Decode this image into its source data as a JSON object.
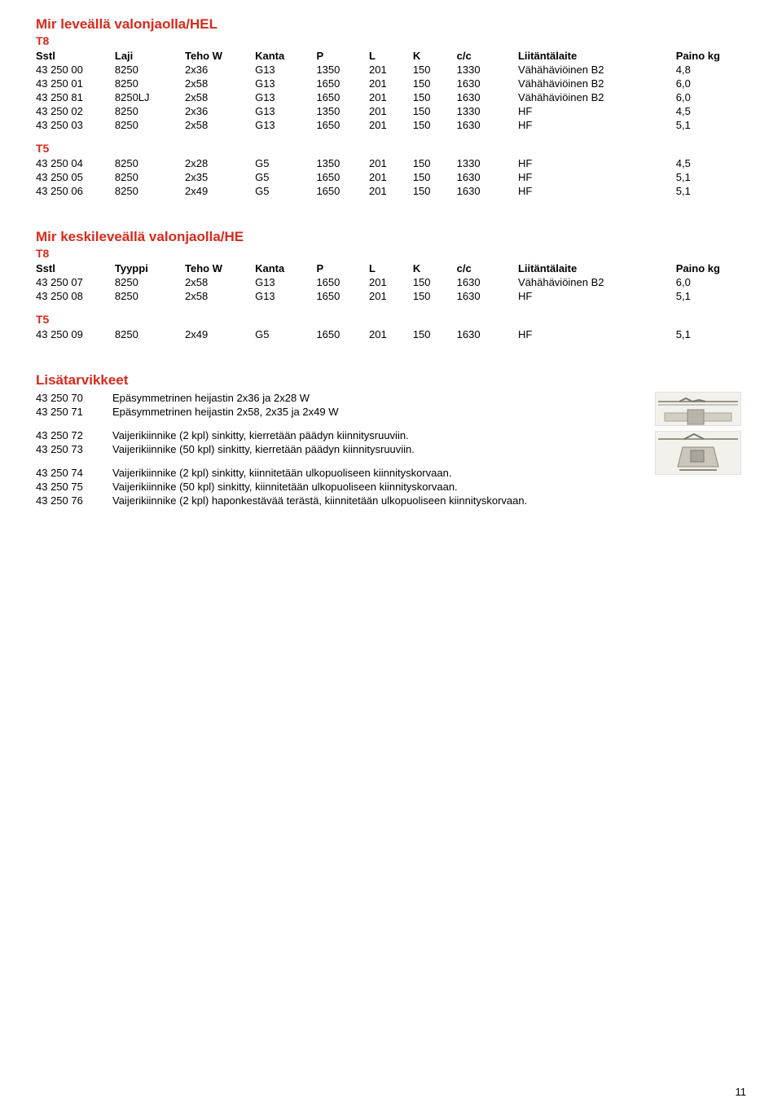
{
  "section1": {
    "title": "Mir leveällä valonjaolla/HEL",
    "sub_t8": "T8",
    "headers": [
      "Sstl",
      "Laji",
      "Teho W",
      "Kanta",
      "P",
      "L",
      "K",
      "c/c",
      "Liitäntälaite",
      "Paino kg"
    ],
    "rows_t8": [
      [
        "43 250 00",
        "8250",
        "2x36",
        "G13",
        "1350",
        "201",
        "150",
        "1330",
        "Vähähäviöinen B2",
        "4,8"
      ],
      [
        "43 250 01",
        "8250",
        "2x58",
        "G13",
        "1650",
        "201",
        "150",
        "1630",
        "Vähähäviöinen B2",
        "6,0"
      ],
      [
        "43 250 81",
        "8250LJ",
        "2x58",
        "G13",
        "1650",
        "201",
        "150",
        "1630",
        "Vähähäviöinen B2",
        "6,0"
      ],
      [
        "43 250 02",
        "8250",
        "2x36",
        "G13",
        "1350",
        "201",
        "150",
        "1330",
        "HF",
        "4,5"
      ],
      [
        "43 250 03",
        "8250",
        "2x58",
        "G13",
        "1650",
        "201",
        "150",
        "1630",
        "HF",
        "5,1"
      ]
    ],
    "sub_t5": "T5",
    "rows_t5": [
      [
        "43 250 04",
        "8250",
        "2x28",
        "G5",
        "1350",
        "201",
        "150",
        "1330",
        "HF",
        "4,5"
      ],
      [
        "43 250 05",
        "8250",
        "2x35",
        "G5",
        "1650",
        "201",
        "150",
        "1630",
        "HF",
        "5,1"
      ],
      [
        "43 250 06",
        "8250",
        "2x49",
        "G5",
        "1650",
        "201",
        "150",
        "1630",
        "HF",
        "5,1"
      ]
    ]
  },
  "section2": {
    "title": "Mir keskileveällä valonjaolla/HE",
    "sub_t8": "T8",
    "headers": [
      "Sstl",
      "Tyyppi",
      "Teho W",
      "Kanta",
      "P",
      "L",
      "K",
      "c/c",
      "Liitäntälaite",
      "Paino kg"
    ],
    "rows_t8": [
      [
        "43 250 07",
        "8250",
        "2x58",
        "G13",
        "1650",
        "201",
        "150",
        "1630",
        "Vähähäviöinen B2",
        "6,0"
      ],
      [
        "43 250 08",
        "8250",
        "2x58",
        "G13",
        "1650",
        "201",
        "150",
        "1630",
        "HF",
        "5,1"
      ]
    ],
    "sub_t5": "T5",
    "rows_t5": [
      [
        "43 250 09",
        "8250",
        "2x49",
        "G5",
        "1650",
        "201",
        "150",
        "1630",
        "HF",
        "5,1"
      ]
    ]
  },
  "accessories": {
    "title": "Lisätarvikkeet",
    "items": [
      {
        "code": "43 250 70",
        "desc": "Epäsymmetrinen heijastin 2x36 ja 2x28 W"
      },
      {
        "code": "43 250 71",
        "desc": "Epäsymmetrinen heijastin 2x58, 2x35 ja 2x49 W"
      },
      {
        "code": "43 250 72",
        "desc": "Vaijerikiinnike (2 kpl) sinkitty, kierretään päädyn kiinnitysruuviin."
      },
      {
        "code": "43 250 73",
        "desc": "Vaijerikiinnike (50 kpl) sinkitty, kierretään päädyn kiinnitysruuviin."
      },
      {
        "code": "43 250 74",
        "desc": "Vaijerikiinnike (2 kpl) sinkitty, kiinnitetään ulkopuoliseen kiinnityskorvaan."
      },
      {
        "code": "43 250 75",
        "desc": "Vaijerikiinnike (50 kpl) sinkitty, kiinnitetään ulkopuoliseen kiinnityskorvaan."
      },
      {
        "code": "43 250 76",
        "desc": "Vaijerikiinnike (2 kpl) haponkestävää terästä, kiinnitetään ulkopuoliseen kiinnityskorvaan."
      }
    ],
    "image_colors": {
      "frame": "#c8c5bd",
      "metal": "#b8b4aa",
      "wire": "#9a958a"
    }
  },
  "page_number": "11",
  "colors": {
    "red": "#d92a1c",
    "text": "#000000",
    "background": "#ffffff"
  }
}
